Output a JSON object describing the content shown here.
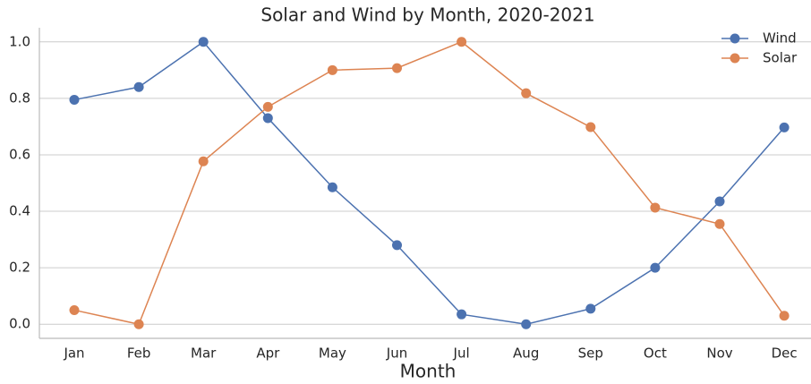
{
  "chart_data": {
    "type": "line",
    "title": "Solar and Wind by Month, 2020-2021",
    "xlabel": "Month",
    "categories": [
      "Jan",
      "Feb",
      "Mar",
      "Apr",
      "May",
      "Jun",
      "Jul",
      "Aug",
      "Sep",
      "Oct",
      "Nov",
      "Dec"
    ],
    "series": [
      {
        "name": "Wind",
        "color": "#4c72b0",
        "values": [
          0.795,
          0.84,
          1.0,
          0.73,
          0.485,
          0.28,
          0.035,
          0.0,
          0.055,
          0.2,
          0.435,
          0.697
        ]
      },
      {
        "name": "Solar",
        "color": "#dd8452",
        "values": [
          0.05,
          0.0,
          0.577,
          0.77,
          0.9,
          0.907,
          1.0,
          0.818,
          0.698,
          0.413,
          0.355,
          0.03
        ]
      }
    ],
    "ylim": [
      -0.05,
      1.05
    ],
    "yticks": [
      {
        "value": 0,
        "label": "0.0"
      },
      0.2,
      0.4,
      0.6,
      0.8,
      {
        "value": 1,
        "label": "1.0"
      }
    ],
    "grid": true,
    "legend": "upper right"
  }
}
